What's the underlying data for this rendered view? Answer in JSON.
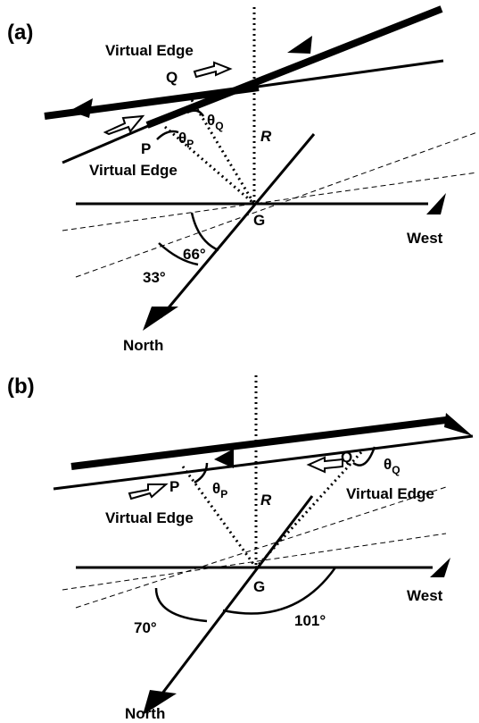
{
  "panel_a": {
    "label": "(a)",
    "virtual_edge_q": "Virtual Edge",
    "q": "Q",
    "p": "P",
    "theta_q": "θ",
    "theta_q_sub": "Q",
    "theta_p": "θ",
    "theta_p_sub": "P",
    "r": "R",
    "virtual_edge_p": "Virtual Edge",
    "g": "G",
    "west": "West",
    "angle_66": "66°",
    "angle_33": "33°",
    "north": "North"
  },
  "panel_b": {
    "label": "(b)",
    "p": "P",
    "theta_p": "θ",
    "theta_p_sub": "P",
    "r": "R",
    "q": "Q",
    "theta_q": "θ",
    "theta_q_sub": "Q",
    "virtual_edge_p": "Virtual Edge",
    "virtual_edge_q": "Virtual Edge",
    "g": "G",
    "west": "West",
    "angle_70": "70°",
    "angle_101": "101°",
    "north": "North"
  }
}
